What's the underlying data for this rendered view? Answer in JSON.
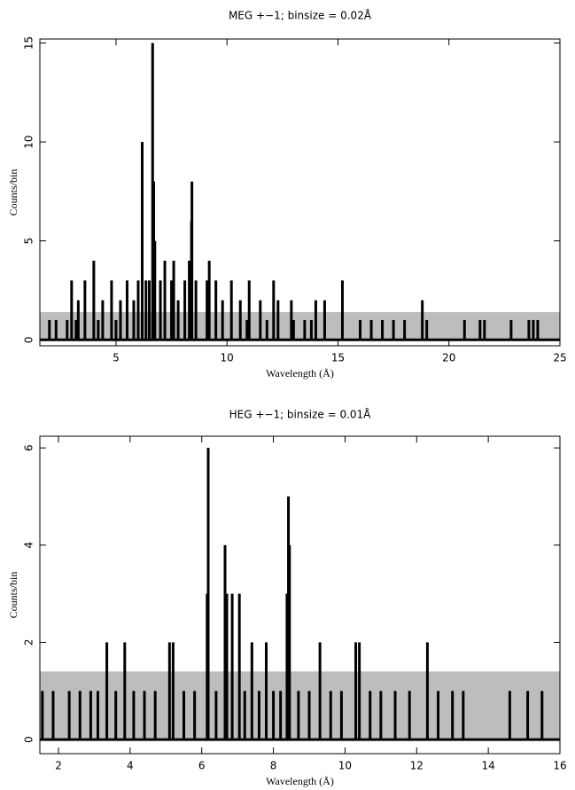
{
  "chart_data": [
    {
      "type": "bar",
      "title": "MEG +−1; binsize = 0.02Å",
      "x_label": "Wavelength (Å)",
      "y_label": "Counts/bin",
      "xlim": [
        1.57,
        25
      ],
      "ylim": [
        -0.3,
        15.2
      ],
      "xticks": [
        5,
        10,
        15,
        20,
        25
      ],
      "yticks": [
        0,
        5,
        10,
        15
      ],
      "band_upper": 1.4,
      "band_color": "#bdbdbd",
      "series": [
        {
          "color": "#000000",
          "x": [
            2.0,
            2.3,
            2.8,
            3.0,
            3.2,
            3.3,
            3.6,
            4.0,
            4.2,
            4.4,
            4.8,
            5.0,
            5.2,
            5.5,
            5.8,
            6.0,
            6.18,
            6.35,
            6.5,
            6.65,
            6.7,
            6.75,
            7.0,
            7.2,
            7.5,
            7.6,
            7.8,
            8.1,
            8.3,
            8.4,
            8.42,
            8.6,
            9.1,
            9.2,
            9.5,
            9.8,
            10.2,
            10.6,
            10.9,
            11.0,
            11.5,
            11.8,
            12.1,
            12.3,
            12.9,
            13.0,
            13.5,
            13.8,
            14.0,
            14.4,
            15.2,
            16.0,
            16.5,
            17.0,
            17.5,
            18.0,
            18.8,
            19.0,
            20.7,
            21.4,
            21.6,
            22.8,
            23.6,
            23.8,
            24.0
          ],
          "values": [
            1,
            1,
            1,
            3,
            1,
            2,
            3,
            4,
            1,
            2,
            3,
            1,
            2,
            3,
            2,
            3,
            10,
            3,
            3,
            15,
            8,
            5,
            3,
            4,
            3,
            4,
            2,
            3,
            4,
            6,
            8,
            3,
            3,
            4,
            3,
            2,
            3,
            2,
            1,
            3,
            2,
            1,
            3,
            2,
            2,
            1,
            1,
            1,
            2,
            2,
            3,
            1,
            1,
            1,
            1,
            1,
            2,
            1,
            1,
            1,
            1,
            1,
            1,
            1,
            1
          ]
        }
      ]
    },
    {
      "type": "bar",
      "title": "HEG +−1; binsize = 0.01Å",
      "x_label": "Wavelength (Å)",
      "y_label": "Counts/bin",
      "xlim": [
        1.48,
        16
      ],
      "ylim": [
        -0.29,
        6.24
      ],
      "xticks": [
        2,
        4,
        6,
        8,
        10,
        12,
        14,
        16
      ],
      "yticks": [
        0,
        2,
        4,
        6
      ],
      "band_upper": 1.4,
      "band_color": "#bdbdbd",
      "series": [
        {
          "color": "#000000",
          "x": [
            1.55,
            1.85,
            2.3,
            2.6,
            2.9,
            3.1,
            3.35,
            3.6,
            3.85,
            4.1,
            4.4,
            4.7,
            5.1,
            5.2,
            5.5,
            5.8,
            6.15,
            6.18,
            6.4,
            6.65,
            6.7,
            6.85,
            7.05,
            7.2,
            7.4,
            7.6,
            7.8,
            8.0,
            8.2,
            8.38,
            8.42,
            8.45,
            8.7,
            9.0,
            9.3,
            9.6,
            9.9,
            10.3,
            10.4,
            10.7,
            11.0,
            11.4,
            11.8,
            12.3,
            12.6,
            13.0,
            13.3,
            14.6,
            15.1,
            15.5
          ],
          "values": [
            1,
            1,
            1,
            1,
            1,
            1,
            2,
            1,
            2,
            1,
            1,
            1,
            2,
            2,
            1,
            1,
            3,
            6,
            1,
            4,
            3,
            3,
            3,
            1,
            2,
            1,
            2,
            1,
            1,
            3,
            5,
            4,
            1,
            1,
            2,
            1,
            1,
            2,
            2,
            1,
            1,
            1,
            1,
            2,
            1,
            1,
            1,
            1,
            1,
            1
          ]
        }
      ]
    }
  ]
}
